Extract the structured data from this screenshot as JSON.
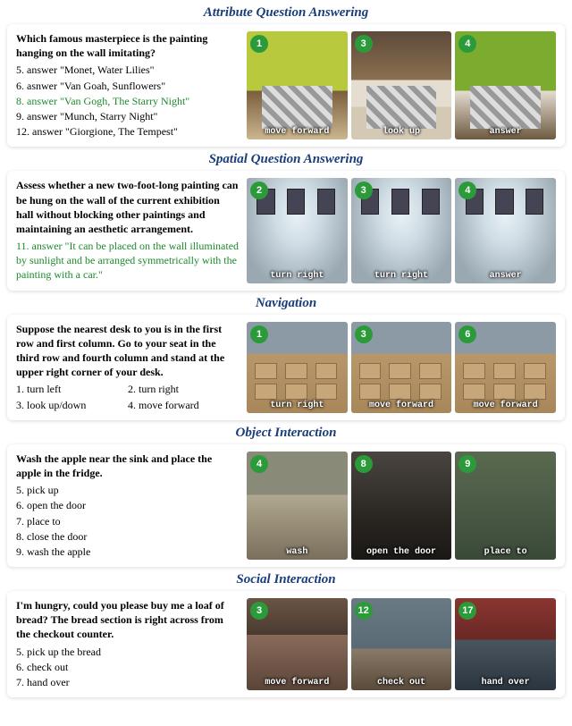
{
  "sections": [
    {
      "title": "Attribute Question Answering",
      "question": "Which famous masterpiece is the painting hanging on the wall imitating?",
      "answers": [
        {
          "n": "5.",
          "text": "answer \"Monet, Water Lilies\""
        },
        {
          "n": "6.",
          "text": "asnwer \"Van Goah, Sunflowers\""
        },
        {
          "n": "8.",
          "text": "answer \"Van Gogh, The Starry Night\"",
          "correct": true
        },
        {
          "n": "9.",
          "text": "answer \"Munch, Starry Night\""
        },
        {
          "n": "12.",
          "text": "answer \"Giorgione, The Tempest\""
        }
      ],
      "scenes": [
        {
          "badge": "1",
          "caption": "move forward",
          "css": "bedroom-1"
        },
        {
          "badge": "3",
          "caption": "look up",
          "css": "bedroom-3"
        },
        {
          "badge": "4",
          "caption": "answer",
          "css": "bedroom-4"
        }
      ]
    },
    {
      "title": "Spatial Question Answering",
      "question": "Assess whether a new two-foot-long painting can be hung on the wall of the current exhibition hall without blocking other paintings and maintaining an aesthetic arrangement.",
      "answers": [
        {
          "n": "11.",
          "text": "answer \"It can be placed on the wall illuminated by sunlight and be arranged symmetrically with the painting with a car.\"",
          "correct": true
        }
      ],
      "scenes": [
        {
          "badge": "2",
          "caption": "turn right",
          "css": "gallery"
        },
        {
          "badge": "3",
          "caption": "turn right",
          "css": "gallery"
        },
        {
          "badge": "4",
          "caption": "answer",
          "css": "gallery"
        }
      ]
    },
    {
      "title": "Navigation",
      "question": "Suppose the nearest desk to you is in the first row and first column. Go to your seat in the third row and fourth column and stand at the upper right corner of your desk.",
      "answers": [
        {
          "n": "1.",
          "text": "turn left",
          "inline_pair": "2. turn right"
        },
        {
          "n": "3.",
          "text": "look up/down",
          "inline_pair": "4. move forward"
        }
      ],
      "scenes": [
        {
          "badge": "1",
          "caption": "turn right",
          "css": "classroom"
        },
        {
          "badge": "3",
          "caption": "move forward",
          "css": "classroom"
        },
        {
          "badge": "6",
          "caption": "move forward",
          "css": "classroom"
        }
      ]
    },
    {
      "title": "Object Interaction",
      "question": "Wash the apple near the sink and place the apple in the fridge.",
      "answers": [
        {
          "n": "5.",
          "text": "pick up"
        },
        {
          "n": "6.",
          "text": "open the door"
        },
        {
          "n": "7.",
          "text": "place to"
        },
        {
          "n": "8.",
          "text": "close the door"
        },
        {
          "n": "9.",
          "text": "wash the apple"
        }
      ],
      "scenes": [
        {
          "badge": "4",
          "caption": "wash",
          "css": "kitchen"
        },
        {
          "badge": "8",
          "caption": "open the door",
          "css": "dark"
        },
        {
          "badge": "9",
          "caption": "place to",
          "css": "shelf"
        }
      ]
    },
    {
      "title": "Social Interaction",
      "question": "I'm hungry, could you please buy me a loaf of bread? The bread section is right across from the checkout counter.",
      "answers": [
        {
          "n": "5.",
          "text": "pick up the bread"
        },
        {
          "n": "6.",
          "text": "check out"
        },
        {
          "n": "7.",
          "text": "hand over"
        }
      ],
      "scenes": [
        {
          "badge": "3",
          "caption": "move forward",
          "css": "store-1"
        },
        {
          "badge": "12",
          "caption": "check out",
          "css": "store-2"
        },
        {
          "badge": "17",
          "caption": "hand over",
          "css": "store-3"
        }
      ]
    }
  ]
}
